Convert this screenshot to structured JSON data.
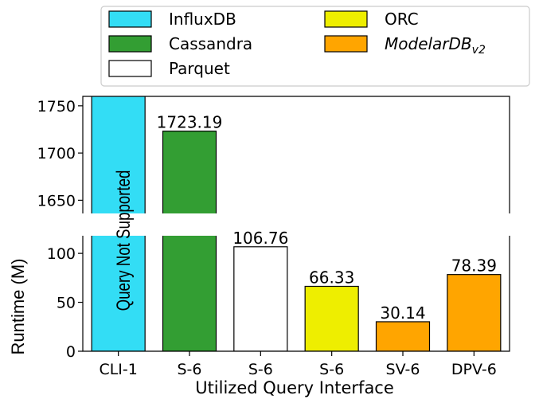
{
  "chart_data": {
    "type": "bar",
    "broken_y_axis": true,
    "categories": [
      "CLI-1",
      "S-6",
      "S-6",
      "S-6",
      "SV-6",
      "DPV-6"
    ],
    "series": [
      {
        "name": "InfluxDB",
        "color": "#33ddf5",
        "category_index": 0,
        "value": null,
        "note": "Query Not Supported"
      },
      {
        "name": "Cassandra",
        "color": "#339e33",
        "category_index": 1,
        "value": 1723.19
      },
      {
        "name": "Parquet",
        "color": "#ffffff",
        "category_index": 2,
        "value": 106.76
      },
      {
        "name": "ORC",
        "color": "#eeee00",
        "category_index": 3,
        "value": 66.33
      },
      {
        "name": "ModelarDB",
        "name_subscript": "v2",
        "color": "#ffa500",
        "category_index": 4,
        "value": 30.14
      },
      {
        "name": "ModelarDB",
        "name_subscript": "v2",
        "color": "#ffa500",
        "category_index": 5,
        "value": 78.39
      }
    ],
    "value_labels": [
      "",
      "1723.19",
      "106.76",
      "66.33",
      "30.14",
      "78.39"
    ],
    "annotation": "Query Not Supported",
    "xlabel": "Utilized Query Interface",
    "ylabel": "Runtime (M)",
    "upper_ylim": [
      1636,
      1760
    ],
    "upper_yticks": [
      1650,
      1700,
      1750
    ],
    "lower_ylim": [
      0,
      118
    ],
    "lower_yticks": [
      0,
      50,
      100
    ],
    "legend": {
      "placement": "top",
      "columns": 2,
      "entries": [
        {
          "label": "InfluxDB",
          "color": "#33ddf5"
        },
        {
          "label": "Cassandra",
          "color": "#339e33"
        },
        {
          "label": "Parquet",
          "color": "#ffffff"
        },
        {
          "label": "ORC",
          "color": "#eeee00"
        },
        {
          "label": "ModelarDB",
          "subscript": "v2",
          "italic": true,
          "color": "#ffa500"
        }
      ]
    },
    "grid": false
  }
}
